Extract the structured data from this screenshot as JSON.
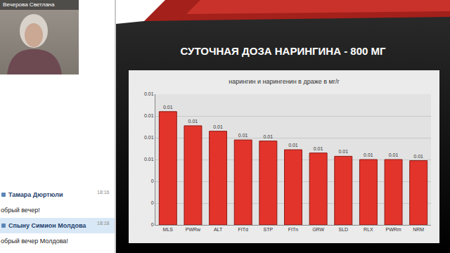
{
  "screen": {
    "presenter": "Вечерова Светлана",
    "chat": [
      {
        "author": "Тамара Дюртюли",
        "time": "18:16",
        "text": "обрый вечер!"
      },
      {
        "author": "Спыну Симион Молдова",
        "time": "18:18",
        "text": "обрый вечер Молдова!"
      }
    ]
  },
  "slide": {
    "title": "СУТОЧНАЯ ДОЗА НАРИНГИНА - 800 МГ"
  },
  "chart_data": {
    "type": "bar",
    "title": "нарингин и нарингенин в драже в мг/г",
    "categories": [
      "MLS",
      "PWRw",
      "ALT",
      "FITd",
      "STP",
      "FITn",
      "GRW",
      "SLD",
      "RLX",
      "PWRm",
      "NRM"
    ],
    "values": [
      0.0104,
      0.0091,
      0.0086,
      0.0078,
      0.0077,
      0.0069,
      0.0066,
      0.0063,
      0.006,
      0.006,
      0.0059
    ],
    "value_labels": [
      "0.01",
      "0.01",
      "0.01",
      "0.01",
      "0.01",
      "0.01",
      "0.01",
      "0.01",
      "0.01",
      "0.01",
      "0.01"
    ],
    "color": "#e3342b",
    "ylim": [
      0,
      0.012
    ],
    "yticks": [
      0,
      {
        "value": 0.002,
        "label": "0"
      },
      {
        "value": 0.004,
        "label": "0"
      },
      {
        "value": 0.006,
        "label": "0.01"
      },
      {
        "value": 0.008,
        "label": "0.01"
      },
      0.01,
      {
        "value": 0.012,
        "label": "0.01"
      }
    ],
    "grid": true,
    "data_labels": true
  }
}
